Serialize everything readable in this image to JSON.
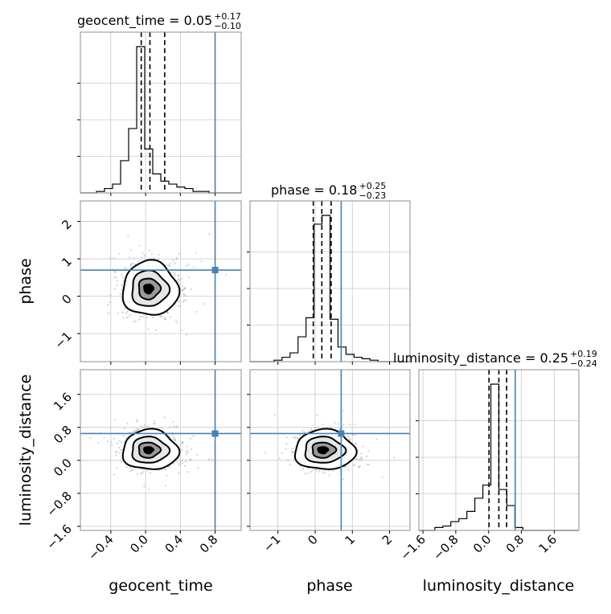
{
  "chart_data": {
    "type": "corner",
    "parameters": [
      "geocent_time",
      "phase",
      "luminosity_distance"
    ],
    "truths": {
      "geocent_time": 0.8,
      "phase": 0.7,
      "luminosity_distance": 0.65
    },
    "truth_color": "#4682b4",
    "ranges": {
      "geocent_time": [
        -0.75,
        1.1
      ],
      "phase": [
        -1.75,
        2.55
      ],
      "luminosity_distance": [
        -1.7,
        2.2
      ]
    },
    "ticks": {
      "geocent_time": [
        -0.4,
        0.0,
        0.4,
        0.8
      ],
      "phase": [
        -1,
        0,
        1,
        2
      ],
      "luminosity_distance": [
        -1.6,
        -0.8,
        0.0,
        0.8,
        1.6
      ]
    },
    "tick_labels": {
      "geocent_time": [
        "−0.4",
        "0.0",
        "0.4",
        "0.8"
      ],
      "phase": [
        "−1",
        "0",
        "1",
        "2"
      ],
      "luminosity_distance": [
        "−1.6",
        "−0.8",
        "0.0",
        "0.8",
        "1.6"
      ]
    },
    "grid": true,
    "titles": [
      {
        "param": "geocent_time",
        "main": "geocent_time = 0.05",
        "plus": "+0.17",
        "minus": "−0.10"
      },
      {
        "param": "phase",
        "main": "phase = 0.18",
        "plus": "+0.25",
        "minus": "−0.23"
      },
      {
        "param": "luminosity_distance",
        "main": "luminosity_distance = 0.25",
        "plus": "+0.19",
        "minus": "−0.24"
      }
    ],
    "axis_labels": {
      "x": [
        "geocent_time",
        "phase",
        "luminosity_distance"
      ],
      "y": [
        "phase",
        "luminosity_distance"
      ]
    },
    "quantiles": {
      "geocent_time": [
        -0.05,
        0.05,
        0.22
      ],
      "phase": [
        -0.05,
        0.18,
        0.43
      ],
      "luminosity_distance": [
        0.01,
        0.25,
        0.44
      ]
    },
    "histograms": {
      "geocent_time": {
        "bin_start": -0.75,
        "bin_width": 0.0925,
        "counts": [
          0,
          0,
          1,
          3,
          6,
          22,
          44,
          100,
          30,
          13,
          8,
          6,
          4,
          3,
          1,
          1,
          0,
          0,
          0,
          0
        ]
      },
      "phase": {
        "bin_start": -1.75,
        "bin_width": 0.215,
        "counts": [
          0,
          0,
          0,
          1,
          3,
          6,
          17,
          30,
          94,
          100,
          29,
          10,
          5,
          3,
          2,
          1,
          0,
          0,
          0,
          0
        ]
      },
      "luminosity_distance": {
        "bin_start": -1.7,
        "bin_width": 0.195,
        "counts": [
          0,
          0,
          2,
          3,
          6,
          8,
          13,
          22,
          31,
          100,
          28,
          17,
          2,
          0,
          0,
          0,
          0,
          0,
          0,
          0
        ]
      }
    },
    "posterior_2d": {
      "center": {
        "geocent_time": 0.03,
        "phase": 0.2,
        "luminosity_distance": 0.25
      },
      "spread": {
        "geocent_time": 0.13,
        "phase": 0.33,
        "luminosity_distance": 0.22
      }
    }
  }
}
